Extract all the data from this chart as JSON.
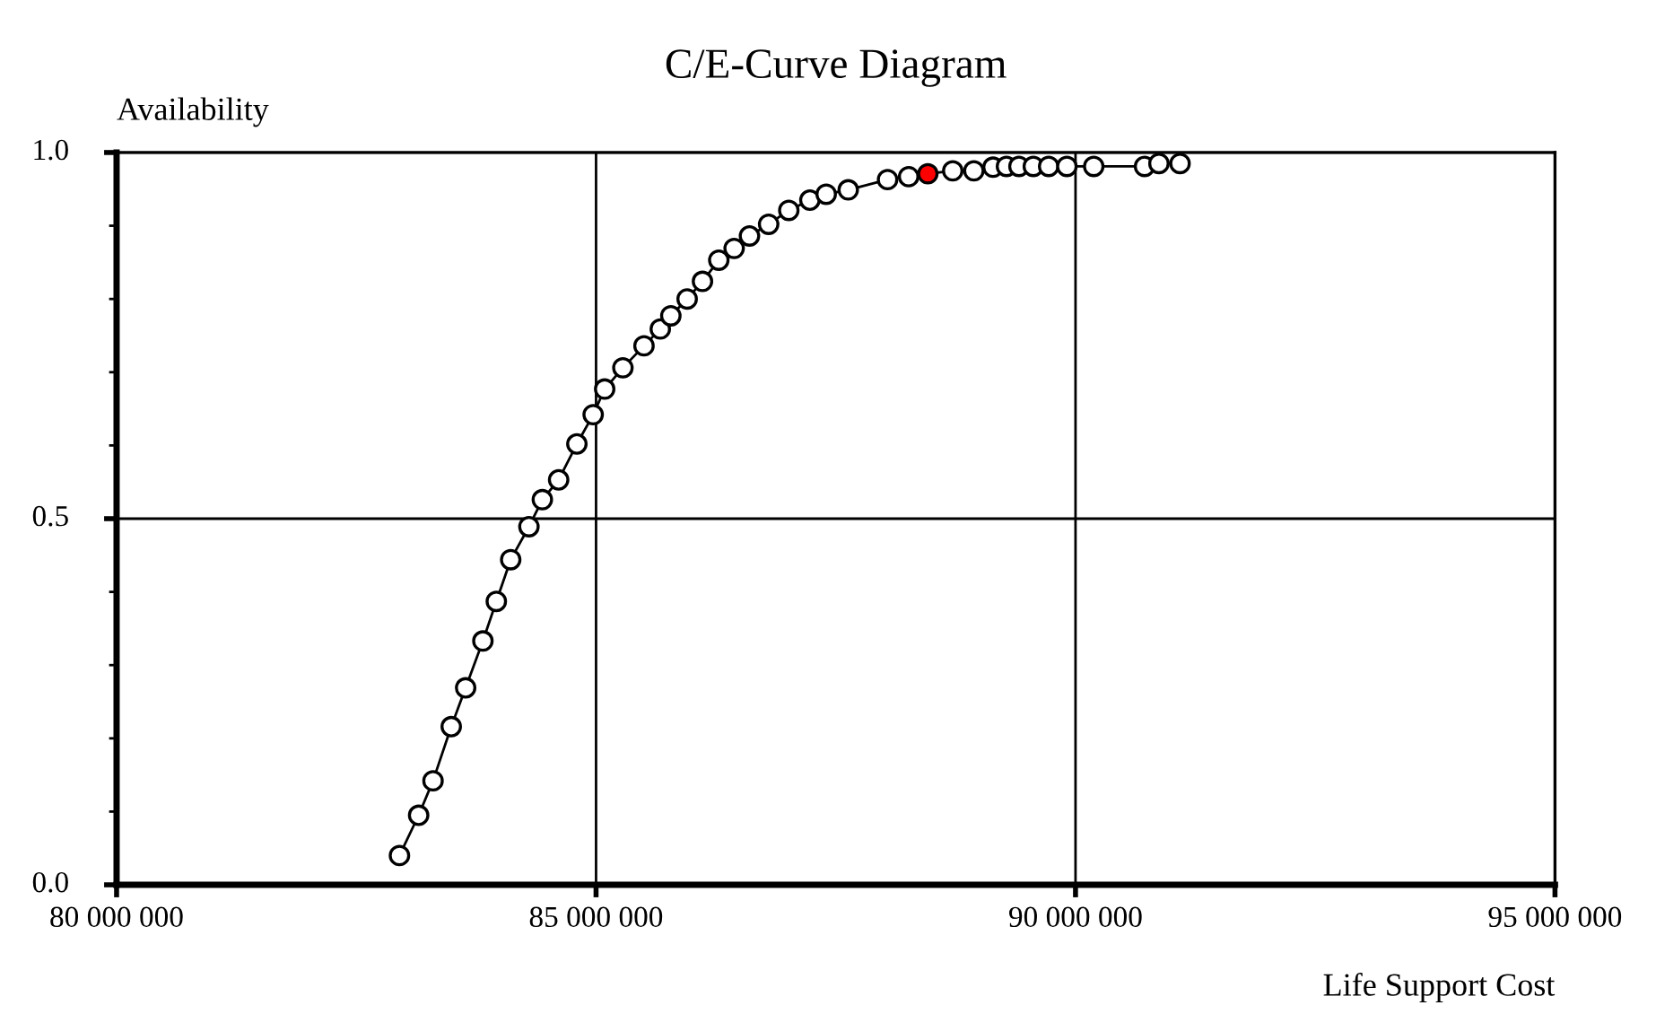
{
  "chart_data": {
    "type": "line",
    "title": "C/E-Curve Diagram",
    "xlabel": "Life Support Cost",
    "ylabel": "Availability",
    "xlim": [
      80000000,
      95000000
    ],
    "ylim": [
      0,
      1
    ],
    "xticks": [
      {
        "value": 80000000,
        "label": "80 000 000"
      },
      {
        "value": 85000000,
        "label": "85 000 000"
      },
      {
        "value": 90000000,
        "label": "90 000 000"
      },
      {
        "value": 95000000,
        "label": "95 000 000"
      }
    ],
    "yticks": [
      {
        "value": 0,
        "label": "0.0"
      },
      {
        "value": 0.1,
        "label": null
      },
      {
        "value": 0.2,
        "label": null
      },
      {
        "value": 0.3,
        "label": null
      },
      {
        "value": 0.4,
        "label": null
      },
      {
        "value": 0.5,
        "label": "0.5"
      },
      {
        "value": 0.6,
        "label": null
      },
      {
        "value": 0.7,
        "label": null
      },
      {
        "value": 0.8,
        "label": null
      },
      {
        "value": 0.9,
        "label": null
      },
      {
        "value": 1,
        "label": "1.0"
      }
    ],
    "grid": true,
    "marker": "circle",
    "line_style": "solid",
    "series": [
      {
        "color": "#000000",
        "x": [
          82950000,
          83150000,
          83300000,
          83490000,
          83640000,
          83820000,
          83960000,
          84110000,
          84300000,
          84440000,
          84610000,
          84800000,
          84970000,
          85090000,
          85280000,
          85500000,
          85670000,
          85780000,
          85950000,
          86110000,
          86280000,
          86440000,
          86600000,
          86800000,
          87010000,
          87230000,
          87400000,
          87630000,
          88040000,
          88260000,
          88460000,
          88720000,
          88940000,
          89140000,
          89280000,
          89410000,
          89560000,
          89720000,
          89910000,
          90190000,
          90720000,
          90870000,
          91090000
        ],
        "values": [
          0.04,
          0.095,
          0.142,
          0.216,
          0.269,
          0.333,
          0.387,
          0.444,
          0.489,
          0.526,
          0.553,
          0.602,
          0.642,
          0.677,
          0.706,
          0.736,
          0.759,
          0.777,
          0.8,
          0.824,
          0.853,
          0.869,
          0.886,
          0.902,
          0.921,
          0.935,
          0.943,
          0.949,
          0.963,
          0.967,
          0.971,
          0.975,
          0.975,
          0.98,
          0.981,
          0.981,
          0.981,
          0.981,
          0.981,
          0.981,
          0.981,
          0.985,
          0.985
        ],
        "colors": [
          "#ffffff",
          "#ffffff",
          "#ffffff",
          "#ffffff",
          "#ffffff",
          "#ffffff",
          "#ffffff",
          "#ffffff",
          "#ffffff",
          "#ffffff",
          "#ffffff",
          "#ffffff",
          "#ffffff",
          "#ffffff",
          "#ffffff",
          "#ffffff",
          "#ffffff",
          "#ffffff",
          "#ffffff",
          "#ffffff",
          "#ffffff",
          "#ffffff",
          "#ffffff",
          "#ffffff",
          "#ffffff",
          "#ffffff",
          "#ffffff",
          "#ffffff",
          "#ffffff",
          "#ffffff",
          "#ff0000",
          "#ffffff",
          "#ffffff",
          "#ffffff",
          "#ffffff",
          "#ffffff",
          "#ffffff",
          "#ffffff",
          "#ffffff",
          "#ffffff",
          "#ffffff",
          "#ffffff",
          "#ffffff"
        ]
      }
    ]
  }
}
